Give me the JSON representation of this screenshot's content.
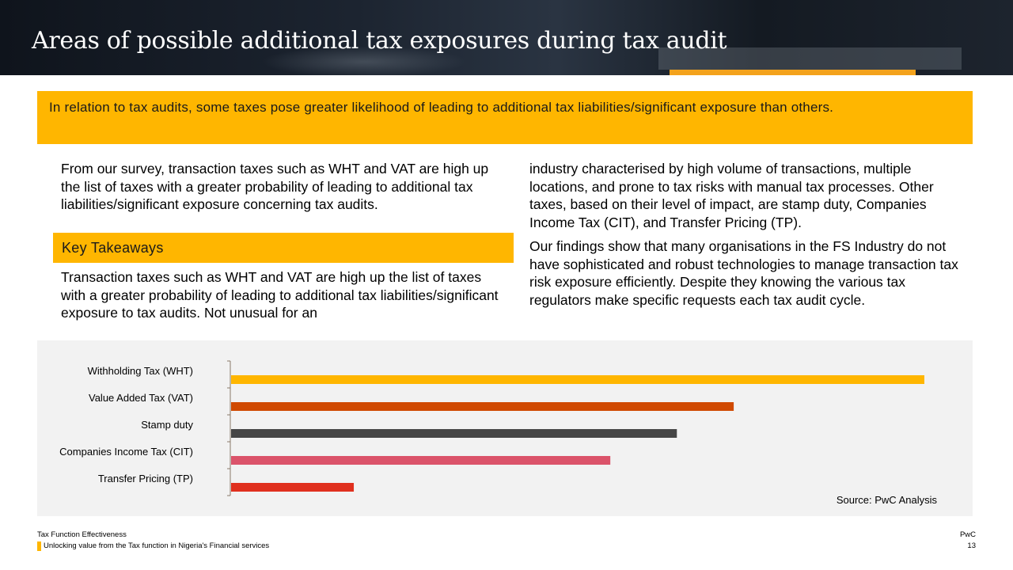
{
  "header": {
    "title": "Areas of possible additional tax exposures during tax audit"
  },
  "banner": {
    "text": "In relation to tax audits, some taxes pose greater likelihood of leading to additional tax liabilities/significant exposure than others."
  },
  "left_column": {
    "intro": "From our survey, transaction taxes such as WHT and VAT are high up the list of taxes with a greater probability of leading to additional tax liabilities/significant exposure concerning tax audits.",
    "key_takeaways_label": "Key Takeaways",
    "takeaway_text": "Transaction taxes such as WHT and VAT are high up the list of taxes with a greater probability of leading to additional tax liabilities/significant exposure to tax audits. Not unusual for an"
  },
  "right_column": {
    "para1": "industry characterised by high volume of transactions, multiple locations, and prone to tax risks with manual tax processes. Other taxes, based on their level of impact, are stamp duty, Companies Income Tax (CIT), and Transfer Pricing (TP).",
    "para2": "Our findings show that many organisations in the FS Industry do not have sophisticated and robust technologies to manage transaction tax risk exposure efficiently. Despite they knowing the various tax regulators make specific requests each tax audit cycle."
  },
  "chart_data": {
    "type": "bar",
    "orientation": "horizontal",
    "categories": [
      "Withholding Tax (WHT)",
      "Value Added Tax (VAT)",
      "Stamp duty",
      "Companies Income Tax (CIT)",
      "Transfer Pricing (TP)"
    ],
    "values": [
      100,
      72.5,
      64.3,
      54.7,
      17.7
    ],
    "colors": [
      "#ffb600",
      "#d04a02",
      "#464646",
      "#db536a",
      "#e0301e"
    ],
    "xlim": [
      0,
      100
    ],
    "grid": false,
    "legend": "none",
    "title": "",
    "xlabel": "",
    "ylabel": "",
    "source": "Source: PwC Analysis"
  },
  "footer": {
    "left_line1": "Tax Function Effectiveness",
    "left_line2": "Unlocking value from the Tax function in Nigeria's Financial services",
    "right_line1": "PwC",
    "page_number": "13",
    "accent_color": "#ffb600"
  }
}
